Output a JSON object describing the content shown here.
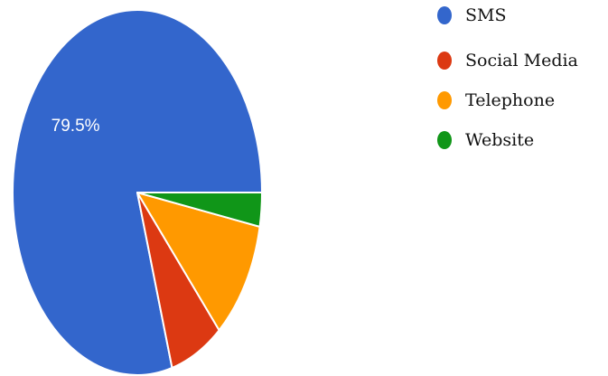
{
  "chart_data": {
    "type": "pie",
    "categories": [
      "SMS",
      "Social Media",
      "Telephone",
      "Website"
    ],
    "values": [
      79.5,
      6.9,
      10.6,
      3.0
    ],
    "colors": [
      "#3366cc",
      "#dc3912",
      "#ff9900",
      "#109618"
    ],
    "data_labels": [
      "79.5%",
      "",
      "",
      ""
    ],
    "legend_position": "right",
    "start_angle": "3 o'clock",
    "direction": "counterclockwise"
  }
}
